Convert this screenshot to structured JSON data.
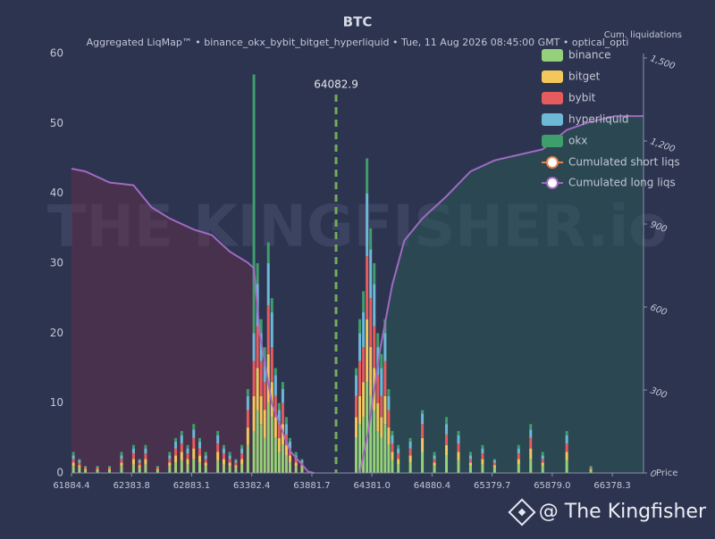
{
  "chart_data": {
    "type": "bar",
    "title": "BTC",
    "subtitle": "Aggregated LiqMap™  •  binance_okx_bybit_bitget_hyperliquid  •  Tue, 11 Aug 2026 08:45:00 GMT  •  optical_opti",
    "x_label": "Price",
    "y2_label": "Cum. liquidations",
    "watermark": "THE KINGFISHER.io",
    "footer": "@ The Kingfisher",
    "current_price": 64082.9,
    "current_price_color": "#6fae5a",
    "background": "#2d3450",
    "xlim": [
      61884.4,
      66637.4
    ],
    "xticks": [
      61884.4,
      62383.8,
      62883.1,
      63382.4,
      63881.7,
      {
        "value": 64381.0,
        "label": "64381.0"
      },
      64880.4,
      65379.7,
      {
        "value": 65879.0,
        "label": "65879.0"
      },
      66378.3
    ],
    "ylim": [
      0,
      60
    ],
    "yticks": [
      0,
      10,
      20,
      30,
      40,
      50,
      60
    ],
    "y2lim": [
      0,
      1500
    ],
    "y2ticks": [
      0,
      300,
      600,
      900,
      {
        "value": 1200,
        "label": "1,200"
      },
      {
        "value": 1500,
        "label": "1,500"
      }
    ],
    "x": [
      61900,
      61950,
      62000,
      62100,
      62200,
      62300,
      62400,
      62450,
      62500,
      62600,
      62700,
      62750,
      62800,
      62850,
      62900,
      62950,
      63000,
      63100,
      63150,
      63200,
      63250,
      63300,
      63350,
      63400,
      63430,
      63460,
      63490,
      63520,
      63550,
      63580,
      63610,
      63640,
      63670,
      63700,
      63750,
      63800,
      64250,
      64280,
      64310,
      64340,
      64370,
      64400,
      64430,
      64460,
      64490,
      64520,
      64550,
      64600,
      64700,
      64800,
      64900,
      65000,
      65100,
      65200,
      65300,
      65400,
      65600,
      65700,
      65800,
      66000,
      66200
    ],
    "series": [
      {
        "name": "binance",
        "color": "#96d07a",
        "values": [
          1,
          0.8,
          0.4,
          0.4,
          0.4,
          1,
          1.2,
          0.8,
          1.2,
          0.4,
          1,
          1.5,
          1.8,
          1.2,
          2,
          1.5,
          1,
          1.8,
          1.2,
          1,
          0.8,
          1.2,
          4,
          6,
          9,
          7,
          5,
          10,
          8,
          5,
          3,
          4,
          2.5,
          1.5,
          1,
          0.8,
          5,
          7,
          8,
          13,
          11,
          9,
          6,
          5,
          7,
          4,
          1.8,
          1.2,
          1.5,
          3,
          1,
          2.5,
          1.8,
          1,
          1.2,
          0.8,
          1.2,
          2,
          1,
          1.8,
          0.4
        ]
      },
      {
        "name": "bitget",
        "color": "#f3c75c",
        "values": [
          0.5,
          0.3,
          0.2,
          0.2,
          0.2,
          0.5,
          0.8,
          0.3,
          0.8,
          0.2,
          0.5,
          1,
          1.2,
          0.8,
          1.5,
          1,
          0.5,
          1.2,
          0.8,
          0.5,
          0.3,
          0.8,
          2.5,
          5,
          6,
          4,
          4,
          7,
          5,
          3,
          2,
          3,
          1.5,
          1,
          0.5,
          0.3,
          3,
          4,
          5,
          9,
          7,
          6,
          4,
          3,
          4,
          2.5,
          1.2,
          0.8,
          1,
          2,
          0.5,
          1.5,
          1.2,
          0.5,
          0.8,
          0.3,
          0.8,
          1.5,
          0.5,
          1.2,
          0.2
        ]
      },
      {
        "name": "bybit",
        "color": "#e65c5e",
        "values": [
          0.5,
          0.4,
          0.2,
          0.2,
          0.2,
          0.5,
          0.8,
          0.4,
          0.8,
          0.2,
          0.5,
          1,
          1.2,
          0.8,
          1.5,
          1,
          0.5,
          1.2,
          0.8,
          0.5,
          0.4,
          0.8,
          2.5,
          5,
          6,
          5,
          4,
          7,
          5,
          3,
          2,
          3,
          1.5,
          1,
          0.5,
          0.4,
          3,
          5,
          5,
          9,
          7,
          6,
          4,
          3,
          5,
          2.5,
          1.2,
          0.8,
          1,
          2,
          0.5,
          1.5,
          1.2,
          0.5,
          0.8,
          0.4,
          0.8,
          1.5,
          0.5,
          1.2,
          0.2
        ]
      },
      {
        "name": "hyperliquid",
        "color": "#6db8d6",
        "values": [
          0.5,
          0.3,
          0.1,
          0.1,
          0.1,
          0.5,
          0.7,
          0.3,
          0.7,
          0.1,
          0.5,
          1,
          1.2,
          0.7,
          1.2,
          1,
          0.5,
          1.2,
          0.7,
          0.5,
          0.3,
          0.7,
          2,
          4,
          6,
          4,
          3,
          6,
          5,
          3,
          2,
          2,
          1.5,
          1,
          0.5,
          0.3,
          3,
          4,
          5,
          9,
          7,
          6,
          4,
          4,
          4,
          2,
          1.2,
          0.7,
          1,
          1.5,
          0.5,
          1.5,
          1.2,
          0.5,
          0.7,
          0.3,
          0.7,
          1.2,
          0.5,
          1.2,
          0.1
        ]
      },
      {
        "name": "okx",
        "color": "#3e9e6c",
        "values": [
          0.5,
          0.2,
          0.1,
          0.1,
          0.1,
          0.5,
          0.5,
          0.2,
          0.5,
          0.1,
          0.5,
          0.5,
          0.6,
          0.5,
          0.8,
          0.5,
          0.5,
          0.6,
          0.5,
          0.5,
          0.2,
          0.5,
          1,
          37,
          3,
          2,
          2,
          3,
          2,
          1,
          1,
          1,
          1,
          0.5,
          0.5,
          0.2,
          1,
          2,
          3,
          5,
          3,
          3,
          2,
          2,
          2,
          1,
          0.6,
          0.5,
          0.5,
          0.5,
          0.5,
          1,
          0.6,
          0.5,
          0.5,
          0.2,
          0.5,
          0.8,
          0.5,
          0.6,
          0.1
        ]
      }
    ],
    "lines": [
      {
        "name": "Cumulated short liqs",
        "color": "#a06ac2",
        "marker_color": "#e8834a",
        "fill": "rgba(40,95,85,0.45)",
        "axis": "y2",
        "x": [
          64280,
          64350,
          64450,
          64550,
          64650,
          64800,
          65000,
          65200,
          65400,
          65600,
          65800,
          66000,
          66200,
          66400,
          66637.4
        ],
        "values": [
          0,
          150,
          450,
          680,
          840,
          920,
          1000,
          1090,
          1130,
          1150,
          1170,
          1240,
          1270,
          1290,
          1290
        ]
      },
      {
        "name": "Cumulated long liqs",
        "color": "#a06ac2",
        "marker_color": "#a06ac2",
        "fill": "rgba(110,45,70,0.4)",
        "axis": "y2",
        "x": [
          61884.4,
          62000,
          62200,
          62400,
          62550,
          62700,
          62900,
          63050,
          63200,
          63350,
          63400,
          63450,
          63550,
          63700,
          63850,
          63900
        ],
        "values": [
          1100,
          1090,
          1050,
          1040,
          960,
          920,
          880,
          860,
          800,
          760,
          740,
          500,
          250,
          80,
          5,
          0
        ]
      }
    ]
  }
}
